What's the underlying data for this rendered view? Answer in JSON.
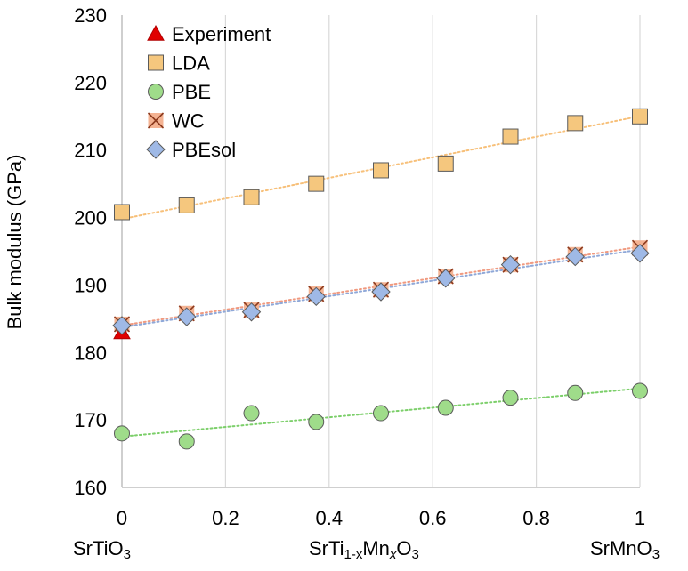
{
  "chart_data": {
    "type": "scatter",
    "title": "",
    "xlabel": "",
    "ylabel": "Bulk modulus (GPa)",
    "xlim": [
      0,
      1
    ],
    "ylim": [
      160,
      230
    ],
    "x_ticks": [
      "0",
      "0.2",
      "0.4",
      "0.6",
      "0.8",
      "1"
    ],
    "y_ticks": [
      "160",
      "170",
      "180",
      "190",
      "200",
      "210",
      "220",
      "230"
    ],
    "grid": "vertical",
    "legend_position": "top-left",
    "composition_labels": {
      "left": {
        "base": "SrTiO",
        "sub": "3"
      },
      "middle": {
        "p1": "SrTi",
        "s1": "1-x",
        "p2": "Mn",
        "s2": "x",
        "p3": "O",
        "s3": "3"
      },
      "right": {
        "base": "SrMnO",
        "sub": "3"
      }
    },
    "series": [
      {
        "name": "Experiment",
        "marker": "triangle",
        "color": "#e00000",
        "trendline": false,
        "x": [
          0
        ],
        "y": [
          183
        ]
      },
      {
        "name": "LDA",
        "marker": "square",
        "color": "#f5c77e",
        "trendline": true,
        "trend_color": "#f7c07a",
        "x": [
          0,
          0.125,
          0.25,
          0.375,
          0.5,
          0.625,
          0.75,
          0.875,
          1
        ],
        "y": [
          200.8,
          201.8,
          203,
          205,
          207,
          208,
          212,
          214,
          215
        ]
      },
      {
        "name": "PBE",
        "marker": "circle",
        "color": "#9fdc8a",
        "trendline": true,
        "trend_color": "#7ccf6a",
        "x": [
          0,
          0.125,
          0.25,
          0.375,
          0.5,
          0.625,
          0.75,
          0.875,
          1
        ],
        "y": [
          168,
          166.8,
          171,
          169.7,
          171,
          171.8,
          173.3,
          174,
          174.3
        ]
      },
      {
        "name": "WC",
        "marker": "x-box",
        "color": "#f4b393",
        "trendline": true,
        "trend_color": "#f09a80",
        "x": [
          0,
          0.125,
          0.25,
          0.375,
          0.5,
          0.625,
          0.75,
          0.875,
          1
        ],
        "y": [
          184.2,
          185.8,
          186.3,
          188.7,
          189.3,
          191.3,
          193,
          194.5,
          195.5
        ]
      },
      {
        "name": "PBEsol",
        "marker": "diamond",
        "color": "#9fb9e6",
        "trendline": true,
        "trend_color": "#8fa8d8",
        "x": [
          0,
          0.125,
          0.25,
          0.375,
          0.5,
          0.625,
          0.75,
          0.875,
          1
        ],
        "y": [
          184,
          185.3,
          186,
          188.3,
          189,
          191,
          193,
          194.2,
          194.7
        ]
      }
    ]
  }
}
